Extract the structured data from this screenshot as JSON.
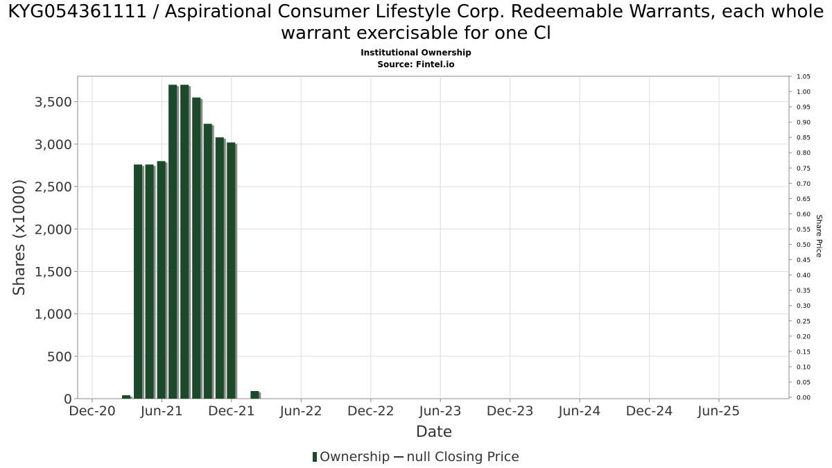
{
  "colors": {
    "bar": "#1b4a2a",
    "bar_shadow": "#8a8a8a",
    "grid": "#dcdcdc",
    "axis": "#888888"
  },
  "chart_data": {
    "type": "bar",
    "title": "KYG054361111 / Aspirational Consumer Lifestyle Corp. Redeemable Warrants, each whole warrant exercisable for one Cl",
    "subtitle": "Institutional Ownership",
    "source": "Source: Fintel.io",
    "xlabel": "Date",
    "ylabel": "Shares (x1000)",
    "y2label": "Share Price",
    "x_ticks": [
      "Dec-20",
      "Jun-21",
      "Dec-21",
      "Jun-22",
      "Dec-22",
      "Jun-23",
      "Dec-23",
      "Jun-24",
      "Dec-24",
      "Jun-25"
    ],
    "ylim": [
      0,
      3800
    ],
    "y_ticks": [
      0,
      500,
      1000,
      1500,
      2000,
      2500,
      3000,
      3500
    ],
    "y_tick_labels": [
      "0",
      "500",
      "1,000",
      "1,500",
      "2,000",
      "2,500",
      "3,000",
      "3,500"
    ],
    "y2lim": [
      0,
      1.05
    ],
    "y2_ticks": [
      "0.00",
      "0.05",
      "0.10",
      "0.15",
      "0.20",
      "0.25",
      "0.30",
      "0.35",
      "0.40",
      "0.45",
      "0.50",
      "0.55",
      "0.60",
      "0.65",
      "0.70",
      "0.75",
      "0.80",
      "0.85",
      "0.90",
      "0.95",
      "1.00",
      "1.05"
    ],
    "grid": true,
    "legend_position": "bottom",
    "series": [
      {
        "name": "Ownership",
        "kind": "bar",
        "x": [
          "2021-02-28",
          "2021-03-31",
          "2021-04-30",
          "2021-05-31",
          "2021-06-30",
          "2021-07-31",
          "2021-08-31",
          "2021-09-30",
          "2021-10-31",
          "2021-11-30",
          "2022-01-31"
        ],
        "values": [
          40,
          2760,
          2760,
          2800,
          3700,
          3700,
          3550,
          3240,
          3080,
          3020,
          90
        ]
      },
      {
        "name": "null Closing Price",
        "kind": "line",
        "x": [],
        "values": []
      }
    ]
  }
}
